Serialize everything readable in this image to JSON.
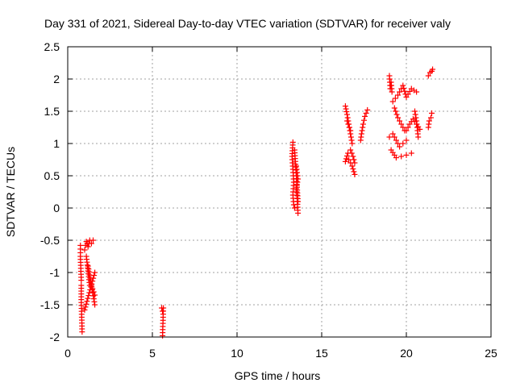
{
  "chart_data": {
    "type": "scatter",
    "title": "Day 331 of 2021, Sidereal Day-to-day VTEC variation (SDTVAR) for receiver valy",
    "xlabel": "GPS time / hours",
    "ylabel": "SDTVAR / TECUs",
    "xlim": [
      0,
      25
    ],
    "ylim": [
      -2,
      2.5
    ],
    "xticks": [
      0,
      5,
      10,
      15,
      20,
      25
    ],
    "yticks": [
      -2,
      -1.5,
      -1,
      -0.5,
      0,
      0.5,
      1,
      1.5,
      2,
      2.5
    ],
    "xtick_labels": [
      "0",
      "5",
      "10",
      "15",
      "20",
      "25"
    ],
    "ytick_labels": [
      "-2",
      "-1.5",
      "-1",
      "-0.5",
      "0",
      "0.5",
      "1",
      "1.5",
      "2",
      "2.5"
    ],
    "grid": true,
    "marker": "+",
    "color": "#ff0000",
    "segments": [
      {
        "x": [
          0.75,
          0.75,
          0.8,
          0.8,
          0.8,
          0.85
        ],
        "y": [
          -0.58,
          -0.75,
          -1.12,
          -1.2,
          -1.42,
          -1.92
        ]
      },
      {
        "x": [
          1.0,
          1.6
        ],
        "y": [
          -1.58,
          -1.0
        ]
      },
      {
        "x": [
          1.0,
          1.05,
          1.1,
          1.15,
          1.2,
          1.3,
          1.4,
          1.5
        ],
        "y": [
          -0.65,
          -0.58,
          -0.52,
          -0.55,
          -0.6,
          -0.5,
          -0.55,
          -0.5
        ]
      },
      {
        "x": [
          1.1,
          1.3
        ],
        "y": [
          -0.75,
          -1.2
        ]
      },
      {
        "x": [
          1.2,
          1.6
        ],
        "y": [
          -0.9,
          -1.5
        ]
      },
      {
        "x": [
          1.4,
          1.6
        ],
        "y": [
          -1.2,
          -1.35
        ]
      },
      {
        "x": [
          5.55,
          5.6,
          5.65,
          5.6
        ],
        "y": [
          -1.55,
          -1.6,
          -1.55,
          -1.98
        ]
      },
      {
        "x": [
          13.3,
          13.25,
          13.3,
          13.35,
          13.3,
          13.35,
          13.4
        ],
        "y": [
          1.02,
          0.8,
          0.6,
          0.4,
          0.2,
          0.05,
          0.0
        ]
      },
      {
        "x": [
          13.4,
          13.6
        ],
        "y": [
          0.9,
          0.1
        ]
      },
      {
        "x": [
          13.5,
          13.6,
          13.5,
          13.55,
          13.6
        ],
        "y": [
          0.65,
          0.45,
          0.3,
          0.15,
          -0.08
        ]
      },
      {
        "x": [
          16.4,
          16.5,
          16.6,
          16.7,
          16.8
        ],
        "y": [
          1.58,
          1.45,
          1.3,
          1.15,
          1.0
        ]
      },
      {
        "x": [
          16.5,
          16.7
        ],
        "y": [
          1.35,
          1.2
        ]
      },
      {
        "x": [
          16.4,
          16.55,
          16.7,
          16.85,
          16.95
        ],
        "y": [
          0.72,
          0.85,
          0.9,
          0.8,
          0.7
        ]
      },
      {
        "x": [
          16.6,
          16.8,
          16.95
        ],
        "y": [
          0.75,
          0.65,
          0.52
        ]
      },
      {
        "x": [
          17.3,
          17.35,
          17.45,
          17.55,
          17.7
        ],
        "y": [
          1.05,
          1.15,
          1.3,
          1.42,
          1.52
        ]
      },
      {
        "x": [
          19.0,
          19.05,
          19.1,
          19.15
        ],
        "y": [
          2.05,
          1.85,
          1.95,
          1.8
        ]
      },
      {
        "x": [
          19.2,
          19.5,
          19.8,
          20.0,
          20.3,
          20.6
        ],
        "y": [
          1.65,
          1.75,
          1.9,
          1.72,
          1.85,
          1.8
        ]
      },
      {
        "x": [
          19.3,
          19.5,
          19.7,
          19.9
        ],
        "y": [
          1.55,
          1.4,
          1.3,
          1.2
        ]
      },
      {
        "x": [
          19.0,
          19.2,
          19.4,
          19.6,
          19.8,
          20.0
        ],
        "y": [
          1.1,
          1.15,
          1.05,
          0.95,
          1.0,
          1.05
        ]
      },
      {
        "x": [
          19.1,
          19.4,
          19.7,
          20.0,
          20.3
        ],
        "y": [
          0.9,
          0.78,
          0.8,
          0.82,
          0.85
        ]
      },
      {
        "x": [
          20.0,
          20.2,
          20.4,
          20.6,
          20.8
        ],
        "y": [
          1.2,
          1.3,
          1.38,
          1.3,
          1.22
        ]
      },
      {
        "x": [
          20.5,
          20.6,
          20.7
        ],
        "y": [
          1.5,
          1.35,
          1.1
        ]
      },
      {
        "x": [
          21.3,
          21.4,
          21.5,
          21.55
        ],
        "y": [
          2.05,
          2.1,
          2.12,
          2.15
        ]
      },
      {
        "x": [
          21.3,
          21.35,
          21.45,
          21.5
        ],
        "y": [
          1.25,
          1.35,
          1.4,
          1.47
        ]
      }
    ]
  }
}
